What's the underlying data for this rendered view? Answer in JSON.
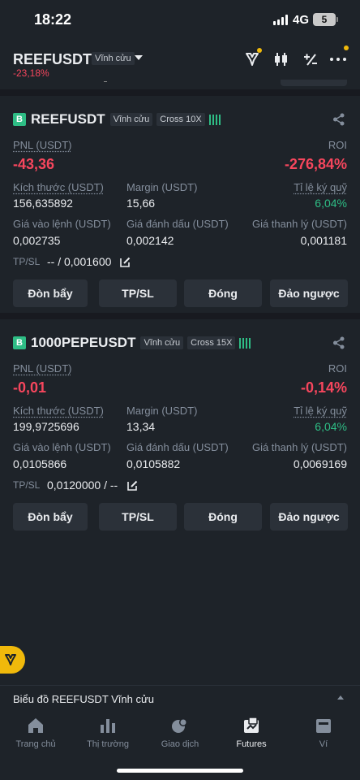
{
  "status": {
    "time": "18:22",
    "network": "4G",
    "battery": "5"
  },
  "header": {
    "symbol": "REEFUSDT",
    "contract_type": "Vĩnh cửu",
    "change": "-23,18%",
    "icons": [
      "trader-icon",
      "candlestick-icon",
      "calculator-icon",
      "more-icon"
    ]
  },
  "positions": [
    {
      "side_badge": "B",
      "symbol": "REEFUSDT",
      "contract_type": "Vĩnh cửu",
      "margin_mode": "Cross 10X",
      "pnl_label": "PNL (USDT)",
      "pnl": "-43,36",
      "roi_label": "ROI",
      "roi": "-276,84%",
      "size_label": "Kích thước (USDT)",
      "size": "156,635892",
      "margin_label": "Margin (USDT)",
      "margin": "15,66",
      "margin_ratio_label": "Tỉ lệ ký quỹ",
      "margin_ratio": "6,04%",
      "entry_label": "Giá vào lệnh (USDT)",
      "entry": "0,002735",
      "mark_label": "Giá đánh dấu (USDT)",
      "mark": "0,002142",
      "liq_label": "Giá thanh lý (USDT)",
      "liq": "0,001181",
      "tpsl_label": "TP/SL",
      "tpsl": "-- / 0,001600",
      "buttons": [
        "Đòn bẩy",
        "TP/SL",
        "Đóng",
        "Đảo ngược"
      ]
    },
    {
      "side_badge": "B",
      "symbol": "1000PEPEUSDT",
      "contract_type": "Vĩnh cửu",
      "margin_mode": "Cross 15X",
      "pnl_label": "PNL (USDT)",
      "pnl": "-0,01",
      "roi_label": "ROI",
      "roi": "-0,14%",
      "size_label": "Kích thước (USDT)",
      "size": "199,9725696",
      "margin_label": "Margin (USDT)",
      "margin": "13,34",
      "margin_ratio_label": "Tỉ lệ ký quỹ",
      "margin_ratio": "6,04%",
      "entry_label": "Giá vào lệnh (USDT)",
      "entry": "0,0105866",
      "mark_label": "Giá đánh dấu (USDT)",
      "mark": "0,0105882",
      "liq_label": "Giá thanh lý (USDT)",
      "liq": "0,0069169",
      "tpsl_label": "TP/SL",
      "tpsl": "0,0120000 / --",
      "buttons": [
        "Đòn bẩy",
        "TP/SL",
        "Đóng",
        "Đảo ngược"
      ]
    }
  ],
  "chart_bar": {
    "title": "Biểu đồ REEFUSDT Vĩnh cửu"
  },
  "nav": [
    {
      "label": "Trang chủ",
      "icon": "home-icon"
    },
    {
      "label": "Thị trường",
      "icon": "market-icon"
    },
    {
      "label": "Giao dịch",
      "icon": "trade-icon"
    },
    {
      "label": "Futures",
      "icon": "futures-icon",
      "active": true
    },
    {
      "label": "Ví",
      "icon": "wallet-icon"
    }
  ],
  "colors": {
    "accent": "#f0b90b",
    "negative": "#f6465d",
    "positive": "#2ebd85",
    "background": "#1e2329"
  }
}
